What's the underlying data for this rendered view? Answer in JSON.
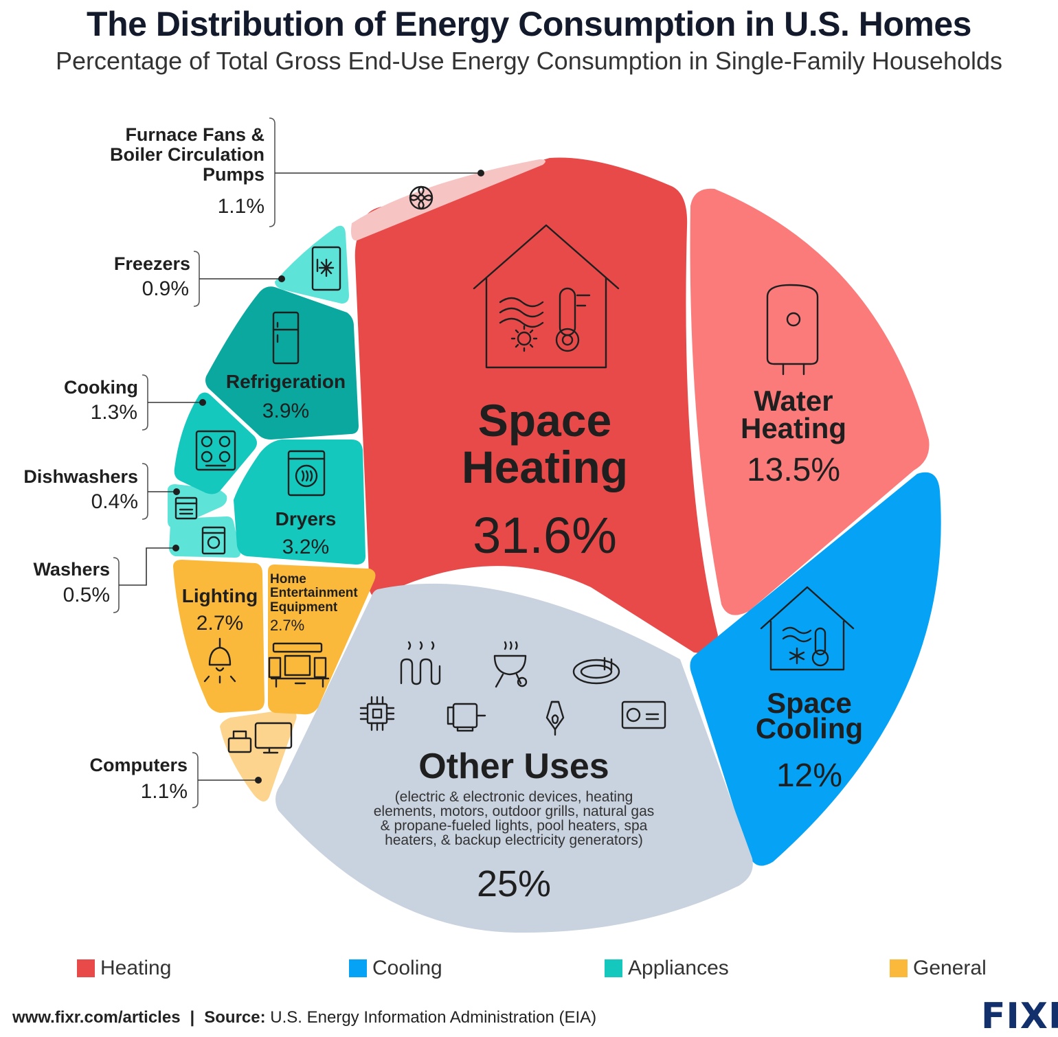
{
  "header": {
    "title": "The Distribution of Energy Consumption in U.S. Homes",
    "subtitle": "Percentage of Total Gross End-Use Energy Consumption in Single-Family Households"
  },
  "colors": {
    "Heating": "#e84a4a",
    "Water": "#fb7b7b",
    "Furnace": "#f7c4c4",
    "Cooling": "#05a2f5",
    "Other": "#c9d2df",
    "ApplianceLight": "#5ee3d9",
    "ApplianceDark": "#0aa89e",
    "Appliance": "#14c8bd",
    "General": "#fbb93b",
    "Computers": "#fcd48e"
  },
  "chart_data": {
    "type": "pie",
    "slices": [
      {
        "label": "Space Heating",
        "value": 31.6,
        "value_label": "31.6%",
        "category": "Heating"
      },
      {
        "label": "Water Heating",
        "value": 13.5,
        "value_label": "13.5%",
        "category": "Heating"
      },
      {
        "label": "Space Cooling",
        "value": 12,
        "value_label": "12%",
        "category": "Cooling"
      },
      {
        "label": "Other Uses",
        "value": 25,
        "value_label": "25%",
        "category": "Other",
        "note": "(electric & electronic devices, heating elements, motors, outdoor grills, natural gas & propane-fueled lights, pool heaters, spa heaters, & backup electricity generators)"
      },
      {
        "label": "Computers",
        "value": 1.1,
        "value_label": "1.1%",
        "category": "General"
      },
      {
        "label": "Lighting",
        "value": 2.7,
        "value_label": "2.7%",
        "category": "General"
      },
      {
        "label": "Home Entertainment Equipment",
        "value": 2.7,
        "value_label": "2.7%",
        "category": "General"
      },
      {
        "label": "Washers",
        "value": 0.5,
        "value_label": "0.5%",
        "category": "Appliances"
      },
      {
        "label": "Dishwashers",
        "value": 0.4,
        "value_label": "0.4%",
        "category": "Appliances"
      },
      {
        "label": "Dryers",
        "value": 3.2,
        "value_label": "3.2%",
        "category": "Appliances"
      },
      {
        "label": "Cooking",
        "value": 1.3,
        "value_label": "1.3%",
        "category": "Appliances"
      },
      {
        "label": "Refrigeration",
        "value": 3.9,
        "value_label": "3.9%",
        "category": "Appliances"
      },
      {
        "label": "Freezers",
        "value": 0.9,
        "value_label": "0.9%",
        "category": "Appliances"
      },
      {
        "label": "Furnace Fans & Boiler Circulation Pumps",
        "value": 1.1,
        "value_label": "1.1%",
        "category": "Heating"
      }
    ],
    "legend": [
      "Heating",
      "Cooling",
      "Appliances",
      "General"
    ],
    "legend_colors": [
      "#e84a4a",
      "#05a2f5",
      "#14c8bd",
      "#fbb93b"
    ],
    "legend_placement": "bottom"
  },
  "footer": {
    "url": "www.fixr.com/articles",
    "separator": "|",
    "source_label": "Source:",
    "source_text": "U.S. Energy Information Administration (EIA)",
    "logo": "FIXR"
  }
}
